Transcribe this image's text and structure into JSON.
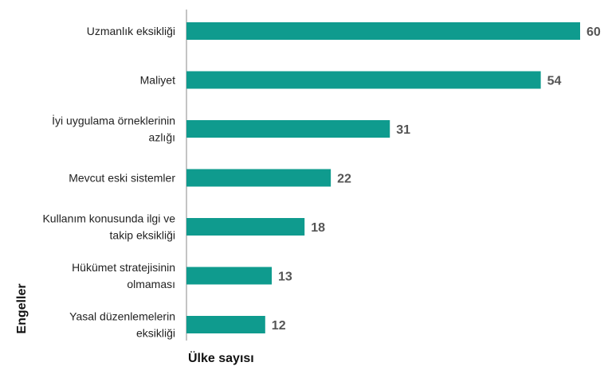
{
  "chart_data": {
    "type": "bar",
    "orientation": "horizontal",
    "categories": [
      [
        "Uzmanlık eksikliği"
      ],
      [
        "Maliyet"
      ],
      [
        "İyi uygulama örneklerinin",
        "azlığı"
      ],
      [
        "Mevcut eski sistemler"
      ],
      [
        "Kullanım konusunda ilgi ve",
        "takip eksikliği"
      ],
      [
        "Hükümet stratejisinin",
        "olmaması"
      ],
      [
        "Yasal düzenlemelerin",
        "eksikliği"
      ]
    ],
    "values": [
      60,
      54,
      31,
      22,
      18,
      13,
      12
    ],
    "xlabel": "Ülke sayısı",
    "ylabel": "Engeller",
    "xlim": [
      0,
      60
    ],
    "grid": false,
    "bar_color": "#0F9B8E",
    "axis_color": "#B0B0B0"
  }
}
